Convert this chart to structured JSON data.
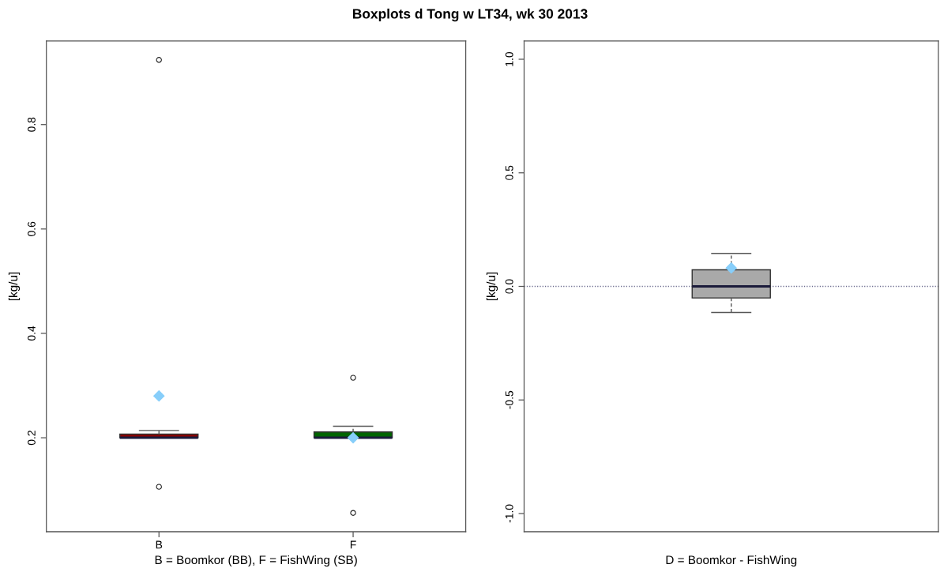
{
  "chart_data": [
    {
      "type": "box",
      "title": "Boxplots d Tong w LT34, wk 30 2013",
      "xlabel": "B = Boomkor (BB), F = FishWing (SB)",
      "ylabel": "[kg/u]",
      "categories": [
        "B",
        "F"
      ],
      "colors": [
        "#8b0000",
        "#006400"
      ],
      "boxes": [
        {
          "low": 0.2,
          "q1": 0.2,
          "median": 0.2,
          "q3": 0.207,
          "high": 0.214,
          "mean": 0.28,
          "outliers": [
            0.924,
            0.106
          ]
        },
        {
          "low": 0.2,
          "q1": 0.2,
          "median": 0.2,
          "q3": 0.211,
          "high": 0.222,
          "mean": 0.2,
          "outliers": [
            0.315,
            0.056
          ]
        }
      ],
      "ylim": [
        0.02,
        0.96
      ],
      "yticks": [
        0.2,
        0.4,
        0.6,
        0.8
      ]
    },
    {
      "type": "box",
      "xlabel": "D = Boomkor - FishWing",
      "ylabel": "[kg/u]",
      "categories": [
        null
      ],
      "colors": [
        "#a9a9a9"
      ],
      "boxes": [
        {
          "low": -0.115,
          "q1": -0.051,
          "median": 0,
          "q3": 0.073,
          "high": 0.145,
          "mean": 0.081
        }
      ],
      "ylim": [
        -1.08,
        1.08
      ],
      "yticks": [
        {
          "value": -1,
          "label": "-1.0"
        },
        {
          "value": -0.5,
          "label": "-0.5"
        },
        {
          "value": 0,
          "label": "0.0"
        },
        {
          "value": 0.5,
          "label": "0.5"
        },
        {
          "value": 1,
          "label": "1.0"
        }
      ],
      "ref_lines": [
        {
          "axis": "y",
          "value": 0,
          "color": "#6b6b8e",
          "line_style": "dotted"
        }
      ],
      "tick_labels": "y"
    }
  ]
}
